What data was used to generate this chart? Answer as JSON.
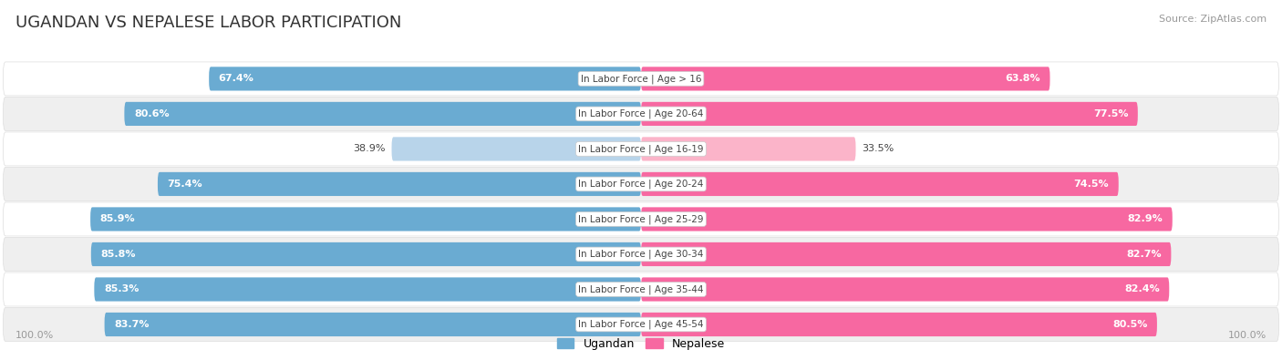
{
  "title": "UGANDAN VS NEPALESE LABOR PARTICIPATION",
  "source": "Source: ZipAtlas.com",
  "categories": [
    "In Labor Force | Age > 16",
    "In Labor Force | Age 20-64",
    "In Labor Force | Age 16-19",
    "In Labor Force | Age 20-24",
    "In Labor Force | Age 25-29",
    "In Labor Force | Age 30-34",
    "In Labor Force | Age 35-44",
    "In Labor Force | Age 45-54"
  ],
  "ugandan_values": [
    67.4,
    80.6,
    38.9,
    75.4,
    85.9,
    85.8,
    85.3,
    83.7
  ],
  "nepalese_values": [
    63.8,
    77.5,
    33.5,
    74.5,
    82.9,
    82.7,
    82.4,
    80.5
  ],
  "ugandan_color": "#6aabd2",
  "ugandan_color_light": "#b8d4ea",
  "nepalese_color": "#f768a1",
  "nepalese_color_light": "#fbb4c9",
  "row_bg_white": "#ffffff",
  "row_bg_gray": "#efefef",
  "row_border": "#dddddd",
  "text_dark": "#444444",
  "text_white": "#ffffff",
  "text_gray": "#999999",
  "max_value": 100.0,
  "fig_width": 14.06,
  "fig_height": 3.95,
  "dpi": 100,
  "legend_ugandan": "Ugandan",
  "legend_nepalese": "Nepalese",
  "title_fontsize": 13,
  "source_fontsize": 8,
  "label_fontsize": 8,
  "cat_fontsize": 7.5,
  "bottom_label": "100.0%"
}
